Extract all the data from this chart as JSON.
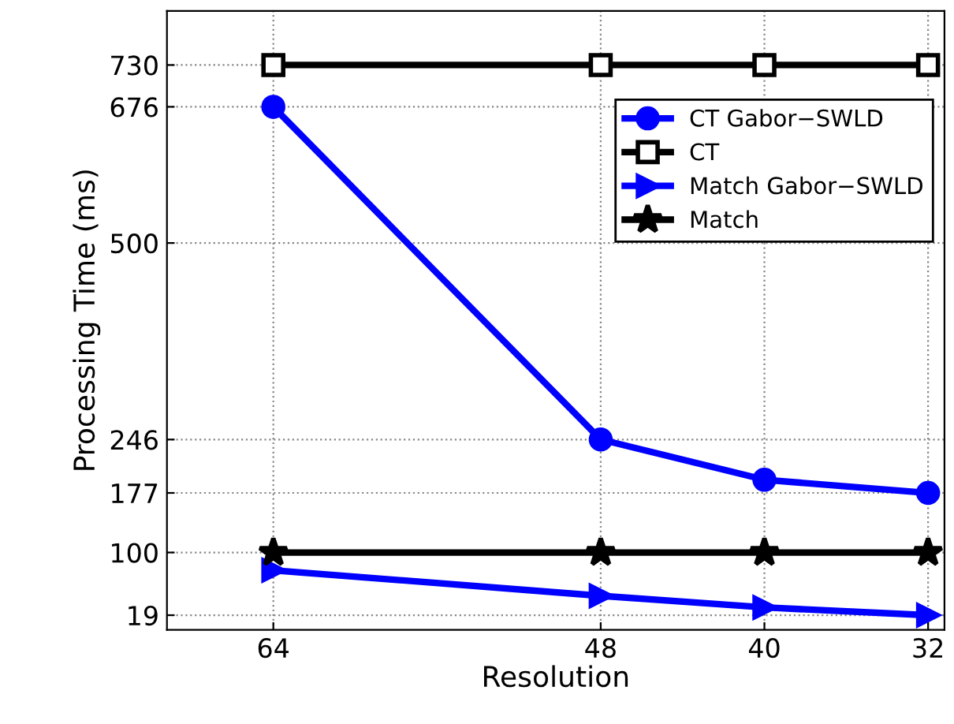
{
  "chart_data": {
    "type": "line",
    "xlabel": "Resolution",
    "ylabel": "Processing Time (ms)",
    "x": [
      64,
      48,
      40,
      32
    ],
    "xlim": [
      69.2,
      31.2
    ],
    "xticks": [
      64,
      48,
      40,
      32
    ],
    "ylim": [
      0,
      800
    ],
    "yticks": [
      19,
      100,
      177,
      246,
      500,
      676,
      730
    ],
    "grid": true,
    "legend": "top right",
    "line_style": "solid",
    "series": [
      {
        "name": "CT Gabor−SWLD",
        "color": "#0000ff",
        "marker": "circle",
        "values": [
          676,
          246,
          194,
          177
        ]
      },
      {
        "name": "CT",
        "color": "#000000",
        "marker": "square",
        "values": [
          730,
          730,
          730,
          730
        ]
      },
      {
        "name": "Match Gabor−SWLD",
        "color": "#0000ff",
        "marker": "triangle",
        "values": [
          77,
          44,
          29,
          19
        ]
      },
      {
        "name": "Match",
        "color": "#000000",
        "marker": "star",
        "values": [
          100,
          100,
          100,
          100
        ]
      }
    ]
  }
}
